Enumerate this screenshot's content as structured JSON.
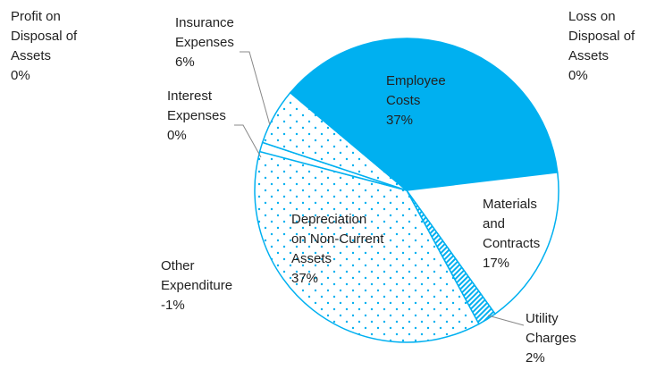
{
  "chart_data": {
    "type": "pie",
    "categories": [
      "Employee Costs",
      "Materials and Contracts",
      "Utility Charges",
      "Depreciation on Non-Current Assets",
      "Other Expenditure",
      "Interest Expenses",
      "Insurance Expenses",
      "Profit on Disposal of Assets",
      "Loss on Disposal of Assets"
    ],
    "values": [
      37,
      17,
      2,
      37,
      -1,
      0,
      6,
      0,
      0
    ],
    "value_labels": [
      "37%",
      "17%",
      "2%",
      "37%",
      "-1%",
      "0%",
      "6%",
      "0%",
      "0%"
    ],
    "colors": [
      "#00b0f0",
      "#ffffff",
      "#00b0f0",
      "#00b0f0",
      "#ffffff",
      "#00b0f0",
      "#00b0f0",
      "#ffffff",
      "#ffffff"
    ],
    "patterns": [
      "solid",
      "solid",
      "hatch",
      "dots",
      "solid",
      "solid",
      "dots",
      "solid",
      "solid"
    ],
    "edge_color": "#00b0f0"
  }
}
